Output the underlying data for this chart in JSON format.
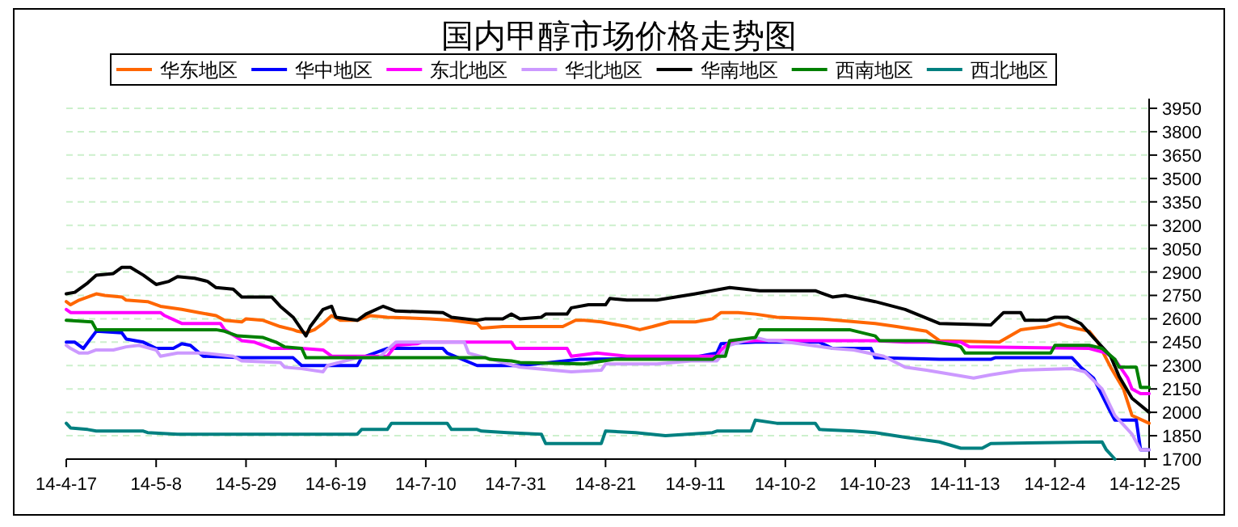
{
  "chart_data": {
    "type": "line",
    "title": "国内甲醇市场价格走势图",
    "legend": "top",
    "grid": "y",
    "xlim": [
      "--04-17",
      "--12-26"
    ],
    "xticks": [
      {
        "value": "--04-17",
        "label": "14-4-17"
      },
      {
        "value": "--05-08",
        "label": "14-5-8"
      },
      {
        "value": "--05-29",
        "label": "14-5-29"
      },
      {
        "value": "--06-19",
        "label": "14-6-19"
      },
      {
        "value": "--07-10",
        "label": "14-7-10"
      },
      {
        "value": "--07-31",
        "label": "14-7-31"
      },
      {
        "value": "--08-21",
        "label": "14-8-21"
      },
      {
        "value": "--09-11",
        "label": "14-9-11"
      },
      {
        "value": "--10-02",
        "label": "14-10-2"
      },
      {
        "value": "--10-23",
        "label": "14-10-23"
      },
      {
        "value": "--11-13",
        "label": "14-11-13"
      },
      {
        "value": "--12-04",
        "label": "14-12-4"
      },
      {
        "value": "--12-25",
        "label": "14-12-25"
      }
    ],
    "ylim": [
      1700,
      3950
    ],
    "yticks": [
      1700,
      1850,
      2000,
      2150,
      2300,
      2450,
      2600,
      2750,
      2900,
      3050,
      3200,
      3350,
      3500,
      3650,
      3800,
      3950
    ],
    "series": [
      {
        "name": "华东地区",
        "color": "#ff6600",
        "x": [
          "--04-17",
          "--04-18",
          "--04-20",
          "--04-24",
          "--04-26",
          "--04-30",
          "--05-01",
          "--05-06",
          "--05-09",
          "--05-14",
          "--05-18",
          "--05-22",
          "--05-24",
          "--05-28",
          "--05-29",
          "--06-02",
          "--06-06",
          "--06-09",
          "--06-10",
          "--06-12",
          "--06-14",
          "--06-16",
          "--06-18",
          "--06-20",
          "--06-24",
          "--06-27",
          "--07-01",
          "--07-11",
          "--07-16",
          "--07-22",
          "--07-23",
          "--07-28",
          "--08-06",
          "--08-11",
          "--08-14",
          "--08-16",
          "--08-20",
          "--08-26",
          "--08-29",
          "--09-01",
          "--09-05",
          "--09-11",
          "--09-15",
          "--09-17",
          "--09-21",
          "--09-25",
          "--09-30",
          "--10-10",
          "--10-23",
          "--10-28",
          "--11-04",
          "--11-07",
          "--11-21",
          "--11-26",
          "--12-02",
          "--12-05",
          "--12-07",
          "--12-12",
          "--12-14",
          "--12-17",
          "--12-20",
          "--12-22",
          "--12-26"
        ],
        "values": [
          2710,
          2690,
          2720,
          2760,
          2750,
          2740,
          2720,
          2710,
          2680,
          2660,
          2640,
          2620,
          2590,
          2580,
          2600,
          2590,
          2550,
          2530,
          2520,
          2510,
          2530,
          2570,
          2620,
          2590,
          2590,
          2620,
          2610,
          2600,
          2590,
          2570,
          2540,
          2550,
          2550,
          2550,
          2590,
          2590,
          2580,
          2550,
          2530,
          2550,
          2580,
          2580,
          2600,
          2640,
          2640,
          2630,
          2610,
          2600,
          2570,
          2550,
          2520,
          2460,
          2450,
          2530,
          2550,
          2570,
          2550,
          2520,
          2450,
          2290,
          2150,
          1980,
          1930
        ]
      },
      {
        "name": "华中地区",
        "color": "#0000ff",
        "x": [
          "--04-17",
          "--04-19",
          "--04-21",
          "--04-24",
          "--04-30",
          "--05-01",
          "--05-05",
          "--05-08",
          "--05-12",
          "--05-14",
          "--05-16",
          "--05-19",
          "--05-28",
          "--06-09",
          "--06-11",
          "--06-24",
          "--06-25",
          "--07-01",
          "--07-14",
          "--07-15",
          "--07-22",
          "--08-01",
          "--08-08",
          "--08-15",
          "--09-10",
          "--09-16",
          "--09-17",
          "--09-25",
          "--10-10",
          "--10-13",
          "--10-22",
          "--10-23",
          "--11-07",
          "--11-19",
          "--11-20",
          "--12-08",
          "--12-10",
          "--12-13",
          "--12-17",
          "--12-18",
          "--12-23",
          "--12-24",
          "--12-26"
        ],
        "values": [
          2450,
          2450,
          2410,
          2520,
          2510,
          2470,
          2450,
          2410,
          2410,
          2440,
          2430,
          2360,
          2350,
          2350,
          2300,
          2300,
          2350,
          2410,
          2410,
          2380,
          2300,
          2300,
          2320,
          2340,
          2350,
          2380,
          2440,
          2450,
          2450,
          2410,
          2410,
          2350,
          2340,
          2340,
          2350,
          2350,
          2290,
          2220,
          2000,
          1950,
          1950,
          1760,
          1760
        ]
      },
      {
        "name": "东北地区",
        "color": "#ff00ff",
        "x": [
          "--04-17",
          "--04-18",
          "--04-24",
          "--04-28",
          "--05-09",
          "--05-10",
          "--05-14",
          "--05-22",
          "--05-23",
          "--05-24",
          "--05-28",
          "--05-31",
          "--06-04",
          "--06-11",
          "--06-16",
          "--06-18",
          "--07-01",
          "--07-03",
          "--07-08",
          "--07-09",
          "--07-30",
          "--07-31",
          "--08-12",
          "--08-13",
          "--08-19",
          "--08-26",
          "--09-16",
          "--09-17",
          "--09-19",
          "--09-25",
          "--10-23",
          "--10-30",
          "--11-12",
          "--11-14",
          "--12-12",
          "--12-16",
          "--12-18",
          "--12-21",
          "--12-22",
          "--12-24",
          "--12-26"
        ],
        "values": [
          2660,
          2640,
          2640,
          2640,
          2640,
          2620,
          2570,
          2570,
          2570,
          2530,
          2460,
          2450,
          2410,
          2410,
          2400,
          2360,
          2360,
          2430,
          2440,
          2450,
          2450,
          2410,
          2410,
          2360,
          2380,
          2360,
          2360,
          2400,
          2450,
          2460,
          2460,
          2450,
          2450,
          2420,
          2410,
          2380,
          2340,
          2220,
          2150,
          2120,
          2120
        ]
      },
      {
        "name": "华北地区",
        "color": "#cc99ff",
        "x": [
          "--04-17",
          "--04-18",
          "--04-20",
          "--04-22",
          "--04-24",
          "--04-28",
          "--05-01",
          "--05-04",
          "--05-08",
          "--05-09",
          "--05-13",
          "--05-19",
          "--05-26",
          "--05-28",
          "--06-06",
          "--06-07",
          "--06-11",
          "--06-16",
          "--06-17",
          "--06-24",
          "--06-29",
          "--07-03",
          "--07-19",
          "--07-20",
          "--08-01",
          "--08-13",
          "--08-20",
          "--08-21",
          "--09-02",
          "--09-10",
          "--09-16",
          "--09-19",
          "--09-25",
          "--09-28",
          "--09-30",
          "--10-08",
          "--10-13",
          "--10-18",
          "--10-25",
          "--10-30",
          "--11-04",
          "--11-15",
          "--11-19",
          "--11-26",
          "--12-08",
          "--12-11",
          "--12-15",
          "--12-18",
          "--12-22",
          "--12-24",
          "--12-26"
        ],
        "values": [
          2430,
          2410,
          2380,
          2380,
          2400,
          2400,
          2420,
          2430,
          2400,
          2360,
          2380,
          2380,
          2360,
          2330,
          2320,
          2290,
          2280,
          2260,
          2300,
          2350,
          2350,
          2450,
          2450,
          2380,
          2290,
          2260,
          2270,
          2310,
          2310,
          2330,
          2330,
          2430,
          2480,
          2460,
          2460,
          2430,
          2410,
          2400,
          2360,
          2290,
          2270,
          2220,
          2240,
          2270,
          2280,
          2260,
          2150,
          1980,
          1860,
          1760,
          1760
        ]
      },
      {
        "name": "华南地区",
        "color": "#000000",
        "x": [
          "--04-17",
          "--04-19",
          "--04-22",
          "--04-24",
          "--04-28",
          "--04-30",
          "--05-02",
          "--05-05",
          "--05-08",
          "--05-11",
          "--05-13",
          "--05-17",
          "--05-20",
          "--05-22",
          "--05-26",
          "--05-28",
          "--06-04",
          "--06-06",
          "--06-09",
          "--06-12",
          "--06-13",
          "--06-16",
          "--06-18",
          "--06-19",
          "--06-24",
          "--06-26",
          "--06-30",
          "--07-03",
          "--07-14",
          "--07-16",
          "--07-22",
          "--07-24",
          "--07-28",
          "--07-30",
          "--08-01",
          "--08-06",
          "--08-07",
          "--08-12",
          "--08-13",
          "--08-17",
          "--08-21",
          "--08-22",
          "--08-26",
          "--09-02",
          "--09-11",
          "--09-19",
          "--09-26",
          "--10-09",
          "--10-13",
          "--10-16",
          "--10-23",
          "--10-30",
          "--11-07",
          "--11-19",
          "--11-22",
          "--11-26",
          "--11-27",
          "--12-02",
          "--12-04",
          "--12-07",
          "--12-10",
          "--12-13",
          "--12-17",
          "--12-19",
          "--12-22",
          "--12-26"
        ],
        "values": [
          2760,
          2770,
          2830,
          2880,
          2890,
          2930,
          2930,
          2880,
          2820,
          2840,
          2870,
          2860,
          2840,
          2800,
          2790,
          2740,
          2740,
          2680,
          2610,
          2490,
          2550,
          2660,
          2680,
          2610,
          2590,
          2630,
          2680,
          2650,
          2640,
          2610,
          2590,
          2600,
          2600,
          2630,
          2600,
          2610,
          2630,
          2630,
          2670,
          2690,
          2690,
          2730,
          2720,
          2720,
          2760,
          2800,
          2780,
          2780,
          2740,
          2750,
          2710,
          2660,
          2570,
          2560,
          2640,
          2640,
          2590,
          2590,
          2610,
          2610,
          2570,
          2480,
          2360,
          2230,
          2090,
          2000
        ]
      },
      {
        "name": "西南地区",
        "color": "#008000",
        "x": [
          "--04-17",
          "--04-23",
          "--04-24",
          "--05-07",
          "--05-08",
          "--05-22",
          "--05-24",
          "--05-27",
          "--06-02",
          "--06-05",
          "--06-07",
          "--06-11",
          "--06-12",
          "--06-19",
          "--07-24",
          "--07-25",
          "--07-30",
          "--08-01",
          "--08-16",
          "--08-23",
          "--09-15",
          "--09-16",
          "--09-18",
          "--09-19",
          "--09-25",
          "--09-26",
          "--10-17",
          "--10-23",
          "--10-24",
          "--11-04",
          "--11-11",
          "--11-12",
          "--11-13",
          "--11-21",
          "--12-03",
          "--12-04",
          "--12-12",
          "--12-15",
          "--12-18",
          "--12-19",
          "--12-23",
          "--12-24",
          "--12-26"
        ],
        "values": [
          2590,
          2580,
          2530,
          2530,
          2530,
          2530,
          2520,
          2490,
          2480,
          2450,
          2420,
          2410,
          2350,
          2350,
          2350,
          2340,
          2330,
          2320,
          2310,
          2340,
          2340,
          2360,
          2360,
          2460,
          2480,
          2530,
          2530,
          2490,
          2460,
          2460,
          2430,
          2420,
          2380,
          2380,
          2380,
          2430,
          2430,
          2410,
          2340,
          2290,
          2290,
          2160,
          2160
        ]
      },
      {
        "name": "西北地区",
        "color": "#008080",
        "x": [
          "--04-17",
          "--04-18",
          "--04-22",
          "--04-24",
          "--05-05",
          "--05-06",
          "--05-13",
          "--06-24",
          "--06-25",
          "--07-01",
          "--07-02",
          "--07-15",
          "--07-16",
          "--07-22",
          "--07-23",
          "--07-29",
          "--08-06",
          "--08-07",
          "--08-20",
          "--08-21",
          "--08-28",
          "--09-04",
          "--09-15",
          "--09-16",
          "--09-24",
          "--09-25",
          "--09-30",
          "--10-09",
          "--10-10",
          "--10-18",
          "--10-23",
          "--10-30",
          "--11-07",
          "--11-12",
          "--11-17",
          "--11-19",
          "--12-15",
          "--12-16",
          "--12-18"
        ],
        "values": [
          1930,
          1900,
          1890,
          1880,
          1880,
          1870,
          1860,
          1860,
          1890,
          1890,
          1930,
          1930,
          1890,
          1890,
          1880,
          1870,
          1860,
          1800,
          1800,
          1880,
          1870,
          1850,
          1870,
          1880,
          1880,
          1950,
          1930,
          1930,
          1890,
          1880,
          1870,
          1840,
          1810,
          1770,
          1770,
          1800,
          1810,
          1760,
          1700
        ]
      }
    ]
  }
}
